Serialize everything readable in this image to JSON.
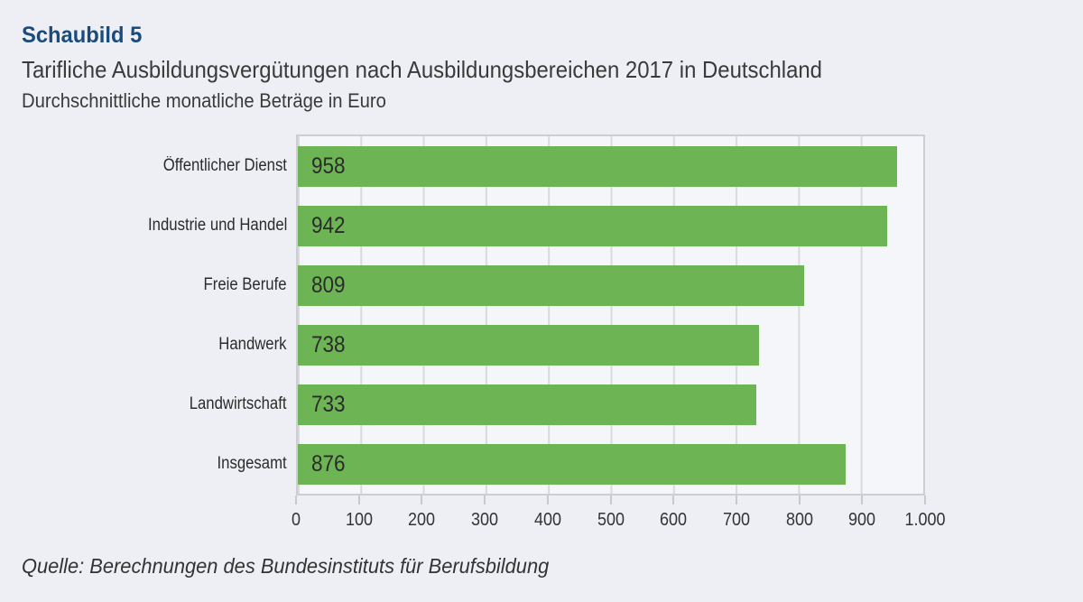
{
  "figure_label": "Schaubild 5",
  "title": "Tarifliche Ausbildungsvergütungen nach Ausbildungsbereichen 2017 in Deutschland",
  "subtitle": "Durchschnittliche monatliche Beträge in Euro",
  "source": "Quelle: Berechnungen des Bundesinstituts für Berufsbildung",
  "colors": {
    "accent_blue": "#1b4b7c",
    "bar_green": "#6db455",
    "page_bg": "#edeff4",
    "plot_bg": "#f5f6f9",
    "gridline": "#d9dade",
    "plot_border": "#cdced2",
    "text": "#333333"
  },
  "chart_data": {
    "type": "bar",
    "orientation": "horizontal",
    "title": "Tarifliche Ausbildungsvergütungen nach Ausbildungsbereichen 2017 in Deutschland",
    "subtitle": "Durchschnittliche monatliche Beträge in Euro",
    "xlabel": "",
    "ylabel": "",
    "categories": [
      "Öffentlicher Dienst",
      "Industrie und Handel",
      "Freie Berufe",
      "Handwerk",
      "Landwirtschaft",
      "Insgesamt"
    ],
    "values": [
      958,
      942,
      809,
      738,
      733,
      876
    ],
    "value_labels": [
      "958",
      "942",
      "809",
      "738",
      "733",
      "876"
    ],
    "xlim": [
      0,
      1000
    ],
    "x_ticks": [
      0,
      100,
      200,
      300,
      400,
      500,
      600,
      700,
      800,
      900,
      1000
    ],
    "x_tick_labels": [
      "0",
      "100",
      "200",
      "300",
      "400",
      "500",
      "600",
      "700",
      "800",
      "900",
      "1.000"
    ],
    "grid": true,
    "legend": "none",
    "value_label_position": "inside-left"
  }
}
